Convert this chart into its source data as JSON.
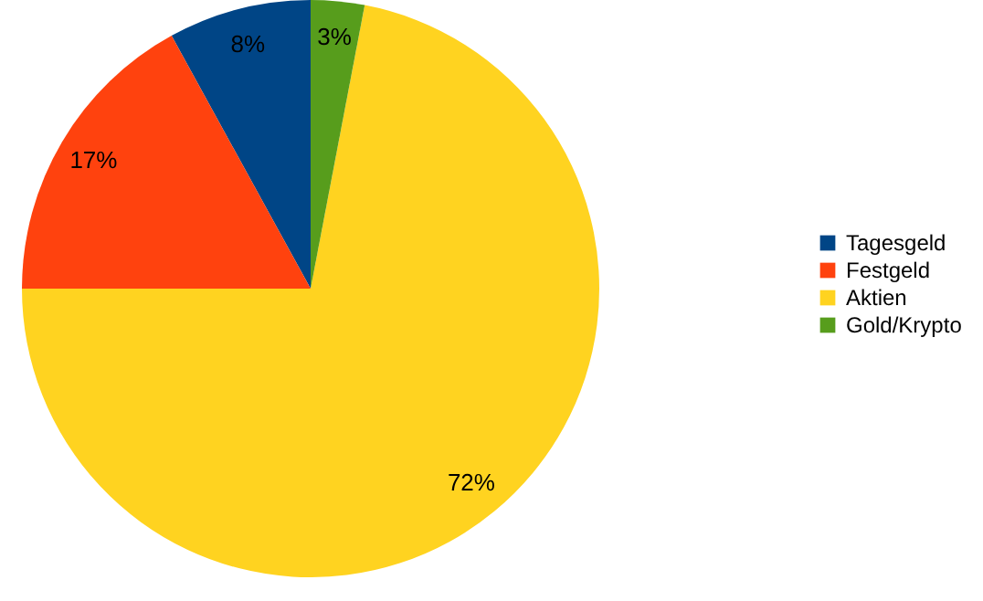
{
  "chart_data": {
    "type": "pie",
    "categories": [
      "Tagesgeld",
      "Festgeld",
      "Aktien",
      "Gold/Krypto"
    ],
    "values": [
      8,
      17,
      72,
      3
    ],
    "value_labels": [
      "8%",
      "17%",
      "72%",
      "3%"
    ],
    "colors": [
      "#004586",
      "#ff420e",
      "#ffd320",
      "#579d1c"
    ],
    "legend": "right"
  }
}
